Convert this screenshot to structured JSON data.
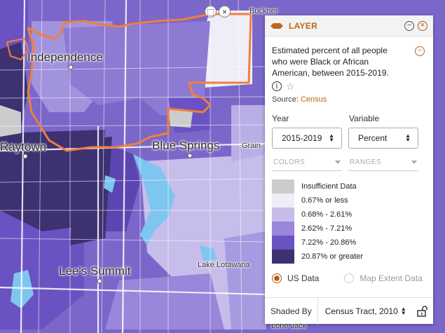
{
  "map": {
    "labels": {
      "independence": "Independence",
      "raytown": "Raytown",
      "blue_springs": "Blue Springs",
      "lees_summit": "Lee's Summit",
      "lake_lotawana": "Lake Lotawana",
      "buckner": "Buckner",
      "grain": "Grain",
      "lone_jack": "Lone Jack"
    },
    "selection_tools": {
      "select_icon": "select-box-icon",
      "clear_icon": "clear-x-icon"
    }
  },
  "panel": {
    "title": "LAYER",
    "description": "Estimated percent of all people who were Black or African American, between 2015-2019.",
    "source_label": "Source:",
    "source_link": "Census",
    "year": {
      "label": "Year",
      "value": "2015-2019"
    },
    "variable": {
      "label": "Variable",
      "value": "Percent"
    },
    "tabs": {
      "colors": "COLORS",
      "ranges": "RANGES"
    },
    "legend": [
      {
        "label": "Insufficient Data",
        "color": "#cccccc"
      },
      {
        "label": "0.67% or less",
        "color": "#efedf8"
      },
      {
        "label": "0.68% - 2.61%",
        "color": "#c6bdeb"
      },
      {
        "label": "2.62% - 7.21%",
        "color": "#9a86da"
      },
      {
        "label": "7.22% - 20.86%",
        "color": "#6b52c2"
      },
      {
        "label": "20.87% or greater",
        "color": "#3d3172"
      }
    ],
    "radio": {
      "us_data": "US Data",
      "map_extent": "Map Extent Data"
    },
    "shaded_by": {
      "label": "Shaded By",
      "value": "Census Tract, 2010"
    }
  },
  "colors": {
    "accent": "#c0661a",
    "boundary": "#f07f3c",
    "water": "#7ec6ef"
  }
}
